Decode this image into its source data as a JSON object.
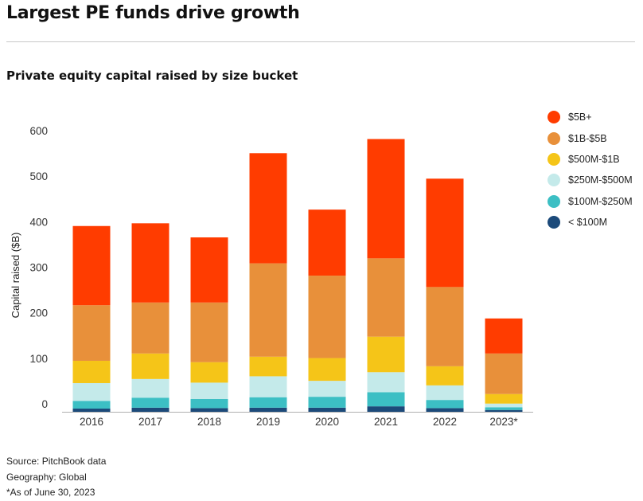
{
  "headline": "Largest PE funds drive growth",
  "subtitle": "Private equity capital raised by size bucket",
  "notes": {
    "source": "Source: PitchBook data",
    "geography": "Geography: Global",
    "footnote": "*As of June 30, 2023"
  },
  "colors": {
    "5B+": "#ff3c00",
    "1B-5B": "#e8903a",
    "500M-1B": "#f5c518",
    "250M-500M": "#c4eaea",
    "100M-250M": "#3cbfc4",
    "lt100M": "#1c4a7a"
  },
  "chart_data": {
    "type": "bar",
    "stacked": true,
    "title": "Private equity capital raised by size bucket",
    "xlabel": "",
    "ylabel": "Capital raised ($B)",
    "ylim": [
      0,
      600
    ],
    "yticks": [
      0,
      100,
      200,
      300,
      400,
      500,
      600
    ],
    "grid": false,
    "legend_position": "right",
    "categories": [
      "2016",
      "2017",
      "2018",
      "2019",
      "2020",
      "2021",
      "2022",
      "2023*"
    ],
    "series": [
      {
        "name": "< $100M",
        "color": "#1c4a7a",
        "values": [
          7,
          9,
          8,
          9,
          9,
          12,
          8,
          4
        ]
      },
      {
        "name": "$100M-$250M",
        "color": "#3cbfc4",
        "values": [
          17,
          22,
          20,
          23,
          24,
          31,
          18,
          6
        ]
      },
      {
        "name": "$250M-$500M",
        "color": "#c4eaea",
        "values": [
          39,
          41,
          36,
          46,
          35,
          44,
          32,
          8
        ]
      },
      {
        "name": "$500M-$1B",
        "color": "#f5c518",
        "values": [
          49,
          56,
          45,
          43,
          50,
          78,
          42,
          21
        ]
      },
      {
        "name": "$1B-$5B",
        "color": "#e8903a",
        "values": [
          122,
          112,
          131,
          205,
          181,
          172,
          174,
          89
        ]
      },
      {
        "name": "$5B+",
        "color": "#ff3c00",
        "values": [
          174,
          174,
          143,
          242,
          145,
          262,
          238,
          77
        ]
      }
    ]
  }
}
